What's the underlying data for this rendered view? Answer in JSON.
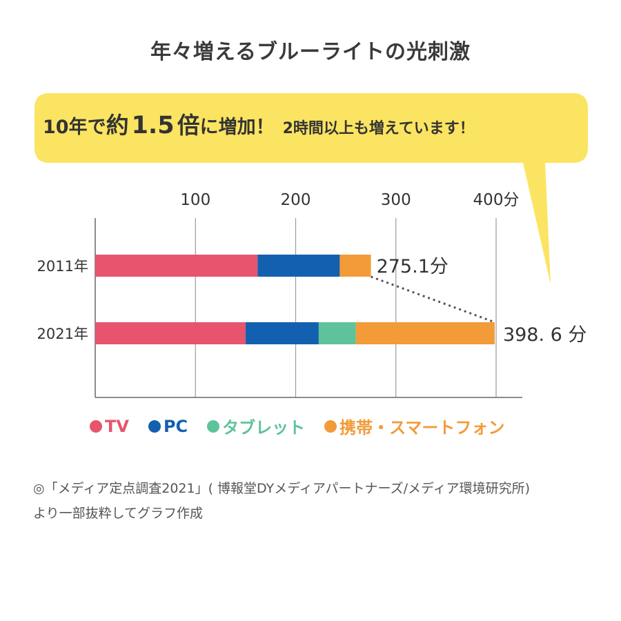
{
  "title": "年々増えるブルーライトの光刺激",
  "callout": {
    "p1": "10年で",
    "p2": "約",
    "p3": "1.5",
    "p4": "倍",
    "p5": "に増加！",
    "p6": "2時間以上も増えています！"
  },
  "colors": {
    "tv": "#e8546d",
    "pc": "#1460b0",
    "tablet": "#5ec39a",
    "smartphone": "#f29b38",
    "bubble": "#fbe461"
  },
  "chart_data": {
    "type": "bar",
    "orientation": "horizontal",
    "stacked": true,
    "categories": [
      "2011年",
      "2021年"
    ],
    "x_ticks": [
      "100",
      "200",
      "300",
      "400分"
    ],
    "xlim": [
      0,
      400
    ],
    "grid": true,
    "series": [
      {
        "name": "TV",
        "values": [
          162,
          150
        ]
      },
      {
        "name": "PC",
        "values": [
          82,
          73
        ]
      },
      {
        "name": "タブレット",
        "values": [
          0,
          37
        ]
      },
      {
        "name": "携帯・スマートフォン",
        "values": [
          31.1,
          138.6
        ]
      }
    ],
    "totals": [
      275.1,
      398.6
    ],
    "total_labels": [
      "275.1分",
      "398. 6 分"
    ],
    "legend_position": "bottom"
  },
  "source": {
    "line1": "◎「メディア定点調査2021」( 博報堂DYメディアパートナーズ/メディア環境研究所)",
    "line2": "より一部抜粋してグラフ作成"
  }
}
